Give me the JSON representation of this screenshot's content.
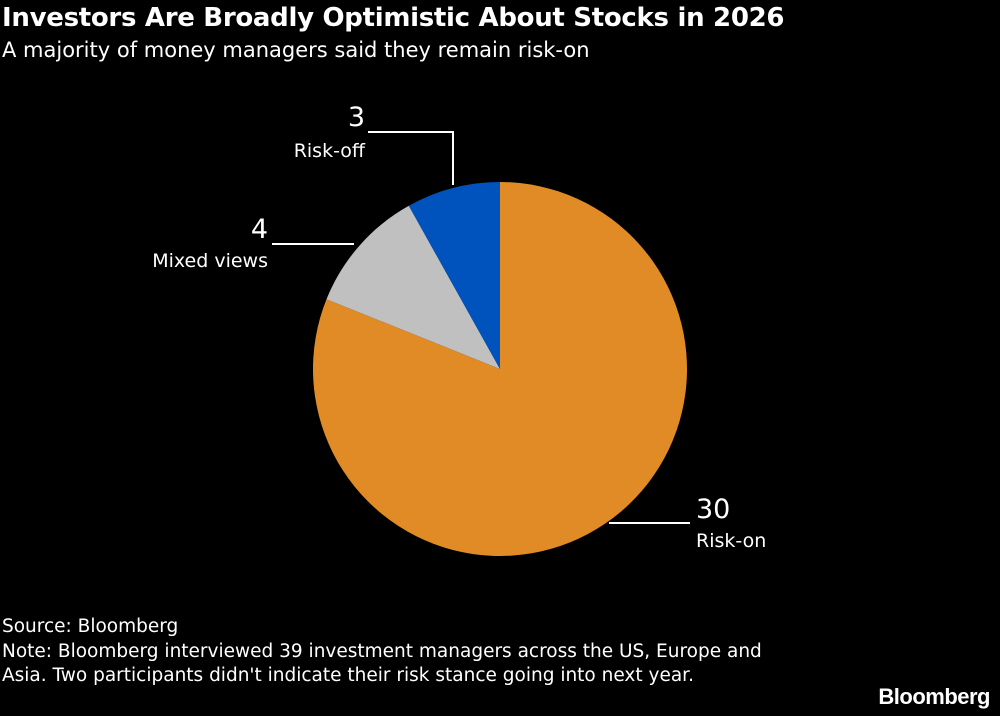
{
  "title": "Investors Are Broadly Optimistic About Stocks in 2026",
  "subtitle": "A majority of money managers said they remain risk-on",
  "chart_data": {
    "type": "pie",
    "title": "Investors Are Broadly Optimistic About Stocks in 2026",
    "subtitle": "A majority of money managers said they remain risk-on",
    "slices": [
      {
        "label": "Risk-on",
        "value": 30,
        "color": "#e08b26"
      },
      {
        "label": "Mixed views",
        "value": 4,
        "color": "#c0c0c0"
      },
      {
        "label": "Risk-off",
        "value": 3,
        "color": "#0052bd"
      }
    ],
    "start_angle": "top, clockwise"
  },
  "footer": {
    "source": "Source: Bloomberg",
    "note": "Note: Bloomberg interviewed 39 investment managers across the US, Europe and Asia. Two participants didn't indicate their risk stance going into next year."
  },
  "logo": "Bloomberg"
}
